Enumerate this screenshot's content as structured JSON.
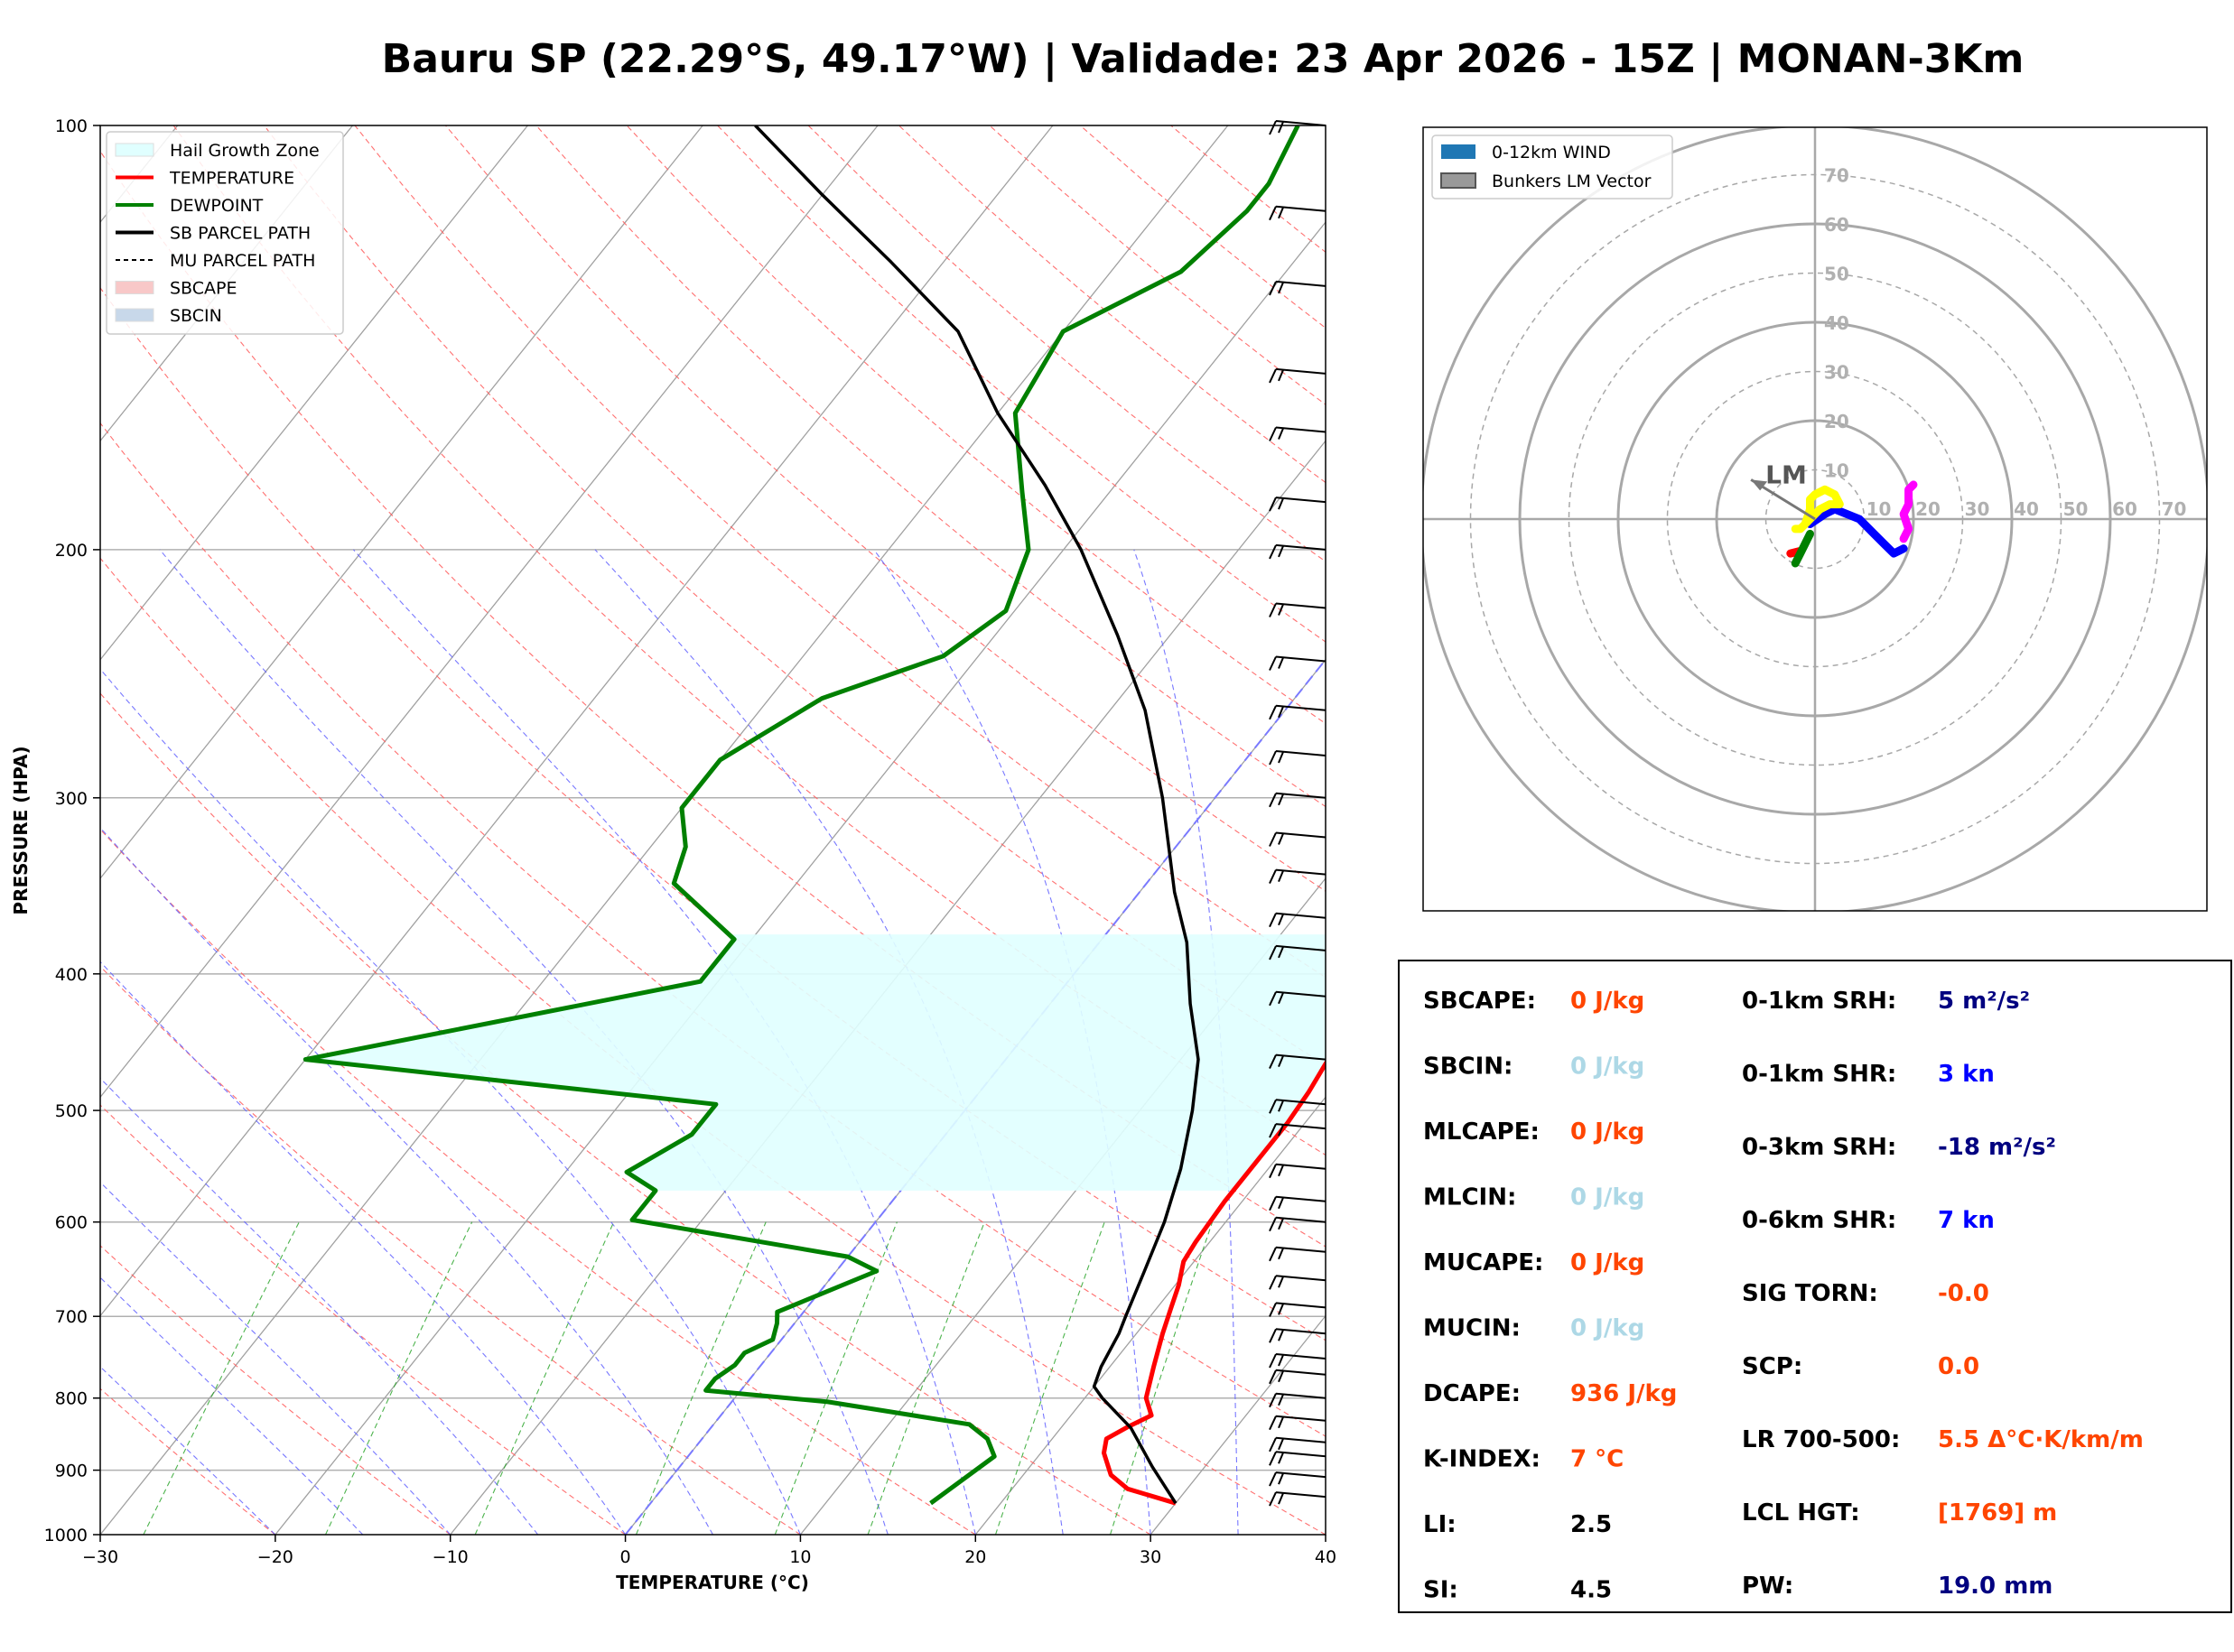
{
  "title": "Bauru SP (22.29°S, 49.17°W) | Validade: 23 Apr 2026 - 15Z | MONAN-3Km",
  "chart_data": [
    {
      "type": "line",
      "subtype": "skew-T log-P",
      "xlabel": "TEMPERATURE (°C)",
      "ylabel": "PRESSURE (HPA)",
      "xlim": [
        -30,
        40
      ],
      "ylim": [
        1000,
        100
      ],
      "y_scale": "log",
      "x_ticks": [
        "−30",
        "−20",
        "−10",
        "0",
        "10",
        "20",
        "30",
        "40"
      ],
      "y_ticks": [
        "100",
        "200",
        "300",
        "400",
        "500",
        "600",
        "700",
        "800",
        "900",
        "1000"
      ],
      "legend_position": "top-left",
      "legend": [
        {
          "label": "Hail Growth Zone",
          "color": "#e0ffff",
          "kind": "patch"
        },
        {
          "label": "TEMPERATURE",
          "color": "#ff0000",
          "kind": "line"
        },
        {
          "label": "DEWPOINT",
          "color": "#008000",
          "kind": "line"
        },
        {
          "label": "SB PARCEL PATH",
          "color": "#000000",
          "kind": "line"
        },
        {
          "label": "MU PARCEL PATH",
          "color": "#000000",
          "kind": "dashed"
        },
        {
          "label": "SBCAPE",
          "color": "#f8c8c8",
          "kind": "patch"
        },
        {
          "label": "SBCIN",
          "color": "#c8d8ea",
          "kind": "patch"
        }
      ],
      "series": [
        {
          "key": "temperature",
          "color": "#ff0000",
          "points": [
            [
              950,
              30
            ],
            [
              928,
              26.6
            ],
            [
              907,
              25
            ],
            [
              875,
              23.6
            ],
            [
              855,
              23.1
            ],
            [
              838,
              23.8
            ],
            [
              823,
              24.6
            ],
            [
              800,
              23.5
            ],
            [
              760,
              22.5
            ],
            [
              720,
              21.5
            ],
            [
              690,
              20.8
            ],
            [
              665,
              20.2
            ],
            [
              640,
              19.4
            ],
            [
              620,
              19.2
            ],
            [
              580,
              19
            ],
            [
              545,
              19
            ],
            [
              510,
              19
            ],
            [
              485,
              18.8
            ],
            [
              465,
              18.5
            ],
            [
              445,
              18.2
            ],
            [
              420,
              17.5
            ],
            [
              390,
              16.5
            ],
            [
              365,
              15.5
            ],
            [
              350,
              15
            ],
            [
              320,
              13.5
            ],
            [
              300,
              12.3
            ],
            [
              270,
              10.5
            ],
            [
              250,
              9
            ],
            [
              225,
              7
            ],
            [
              205,
              5
            ],
            [
              185,
              3
            ],
            [
              165,
              1.5
            ],
            [
              145,
              0
            ],
            [
              128,
              -1
            ],
            [
              115,
              -1
            ],
            [
              105,
              1
            ],
            [
              100,
              2.5
            ]
          ]
        },
        {
          "key": "dewpoint",
          "color": "#008000",
          "points": [
            [
              950,
              16
            ],
            [
              880,
              17.5
            ],
            [
              855,
              16.3
            ],
            [
              835,
              14.6
            ],
            [
              805,
              5.5
            ],
            [
              790,
              -2
            ],
            [
              775,
              -2
            ],
            [
              758,
              -1.5
            ],
            [
              743,
              -1.5
            ],
            [
              727,
              -0.5
            ],
            [
              708,
              -1
            ],
            [
              695,
              -1.5
            ],
            [
              650,
              2.3
            ],
            [
              635,
              0
            ],
            [
              598,
              -14
            ],
            [
              570,
              -14
            ],
            [
              553,
              -16.5
            ],
            [
              520,
              -14.5
            ],
            [
              495,
              -14.5
            ],
            [
              460,
              -40
            ],
            [
              405,
              -21
            ],
            [
              378,
              -21
            ],
            [
              345,
              -27
            ],
            [
              325,
              -28
            ],
            [
              305,
              -30
            ],
            [
              282,
              -30
            ],
            [
              255,
              -27
            ],
            [
              238,
              -22
            ],
            [
              221,
              -20.5
            ],
            [
              200,
              -22
            ],
            [
              182,
              -25
            ],
            [
              160,
              -29
            ],
            [
              140,
              -30
            ],
            [
              127,
              -26
            ],
            [
              115,
              -25
            ],
            [
              110,
              -25
            ],
            [
              100,
              -26
            ]
          ]
        },
        {
          "key": "sb_parcel",
          "color": "#000000",
          "points": [
            [
              950,
              30
            ],
            [
              895,
              27
            ],
            [
              840,
              24
            ],
            [
              800,
              21
            ],
            [
              785,
              20
            ],
            [
              760,
              19.5
            ],
            [
              720,
              19
            ],
            [
              700,
              18.6
            ],
            [
              650,
              17.6
            ],
            [
              600,
              16.5
            ],
            [
              550,
              15
            ],
            [
              500,
              13
            ],
            [
              460,
              11
            ],
            [
              420,
              8
            ],
            [
              380,
              5
            ],
            [
              350,
              2
            ],
            [
              300,
              -3
            ],
            [
              260,
              -8
            ],
            [
              230,
              -13
            ],
            [
              200,
              -19
            ],
            [
              180,
              -24
            ],
            [
              160,
              -30
            ],
            [
              140,
              -36
            ],
            [
              125,
              -43
            ],
            [
              112,
              -50
            ],
            [
              100,
              -57
            ]
          ]
        }
      ],
      "hail_growth_zone_hpa": [
        375,
        570
      ],
      "wind_barbs_hpa": [
        100,
        115,
        130,
        150,
        165,
        185,
        200,
        220,
        240,
        260,
        280,
        300,
        320,
        340,
        365,
        385,
        415,
        460,
        495,
        515,
        550,
        580,
        600,
        630,
        660,
        690,
        720,
        750,
        770,
        800,
        830,
        860,
        880,
        910,
        940
      ]
    },
    {
      "type": "line",
      "subtype": "hodograph",
      "ring_labels": [
        "10",
        "20",
        "30",
        "40",
        "50",
        "60",
        "70"
      ],
      "legend_position": "top-left",
      "legend": [
        {
          "label": "0-12km WIND",
          "color": "#1f77b4",
          "kind": "patch"
        },
        {
          "label": "Bunkers LM Vector",
          "color": "#999999",
          "kind": "patch"
        }
      ],
      "lm_label": "LM",
      "lm_vector_kn": [
        -13,
        8
      ],
      "series": [
        {
          "color": "#ff0000",
          "points": [
            [
              -5,
              -7
            ],
            [
              -3,
              -6.5
            ]
          ]
        },
        {
          "color": "#008000",
          "points": [
            [
              -4,
              -9
            ],
            [
              -3,
              -7
            ],
            [
              -2,
              -5
            ],
            [
              -1,
              -3
            ]
          ]
        },
        {
          "color": "#0000ff",
          "points": [
            [
              -1,
              -1
            ],
            [
              2,
              1
            ],
            [
              4,
              2
            ],
            [
              9,
              0
            ],
            [
              12,
              -3
            ],
            [
              14,
              -5
            ],
            [
              16,
              -7
            ],
            [
              18,
              -6
            ]
          ]
        },
        {
          "color": "#ff00ff",
          "points": [
            [
              18,
              -4
            ],
            [
              19,
              -2
            ],
            [
              18,
              1
            ],
            [
              19,
              3
            ],
            [
              19,
              6
            ],
            [
              20,
              7
            ]
          ]
        },
        {
          "color": "#ffff00",
          "points": [
            [
              -2,
              -1
            ],
            [
              -1,
              2
            ],
            [
              -1,
              4
            ],
            [
              0,
              5
            ],
            [
              2,
              6
            ],
            [
              4,
              5
            ],
            [
              5,
              3
            ],
            [
              3,
              3
            ],
            [
              1,
              2
            ],
            [
              -1,
              0
            ],
            [
              -2,
              -1
            ],
            [
              -3,
              -2
            ],
            [
              -4,
              -2
            ]
          ]
        }
      ]
    }
  ],
  "indices_left": [
    {
      "label": "SBCAPE:",
      "value": "0 J/kg",
      "color": "#ff4500"
    },
    {
      "label": "SBCIN:",
      "value": "0 J/kg",
      "color": "#add8e6"
    },
    {
      "label": "MLCAPE:",
      "value": "0 J/kg",
      "color": "#ff4500"
    },
    {
      "label": "MLCIN:",
      "value": "0 J/kg",
      "color": "#add8e6"
    },
    {
      "label": "MUCAPE:",
      "value": "0 J/kg",
      "color": "#ff4500"
    },
    {
      "label": "MUCIN:",
      "value": "0 J/kg",
      "color": "#add8e6"
    },
    {
      "label": "DCAPE:",
      "value": "936 J/kg",
      "color": "#ff4500"
    },
    {
      "label": "K-INDEX:",
      "value": "7 °C",
      "color": "#ff4500"
    },
    {
      "label": "LI:",
      "value": "2.5",
      "color": "#000000"
    },
    {
      "label": "SI:",
      "value": "4.5",
      "color": "#000000"
    }
  ],
  "indices_right": [
    {
      "label": "0-1km SRH:",
      "value": "5 m²/s²",
      "color": "#000080"
    },
    {
      "label": "0-1km SHR:",
      "value": "3 kn",
      "color": "#0000ff"
    },
    {
      "label": "0-3km SRH:",
      "value": "-18 m²/s²",
      "color": "#000080"
    },
    {
      "label": "0-6km SHR:",
      "value": "7 kn",
      "color": "#0000ff"
    },
    {
      "label": "SIG TORN:",
      "value": "-0.0",
      "color": "#ff4500"
    },
    {
      "label": "SCP:",
      "value": "0.0",
      "color": "#ff4500"
    },
    {
      "label": "LR 700-500:",
      "value": "5.5 Δ°C·K/km/m",
      "color": "#ff4500"
    },
    {
      "label": "LCL HGT:",
      "value": "[1769] m",
      "color": "#ff4500"
    },
    {
      "label": "PW:",
      "value": "19.0 mm",
      "color": "#000080"
    }
  ]
}
